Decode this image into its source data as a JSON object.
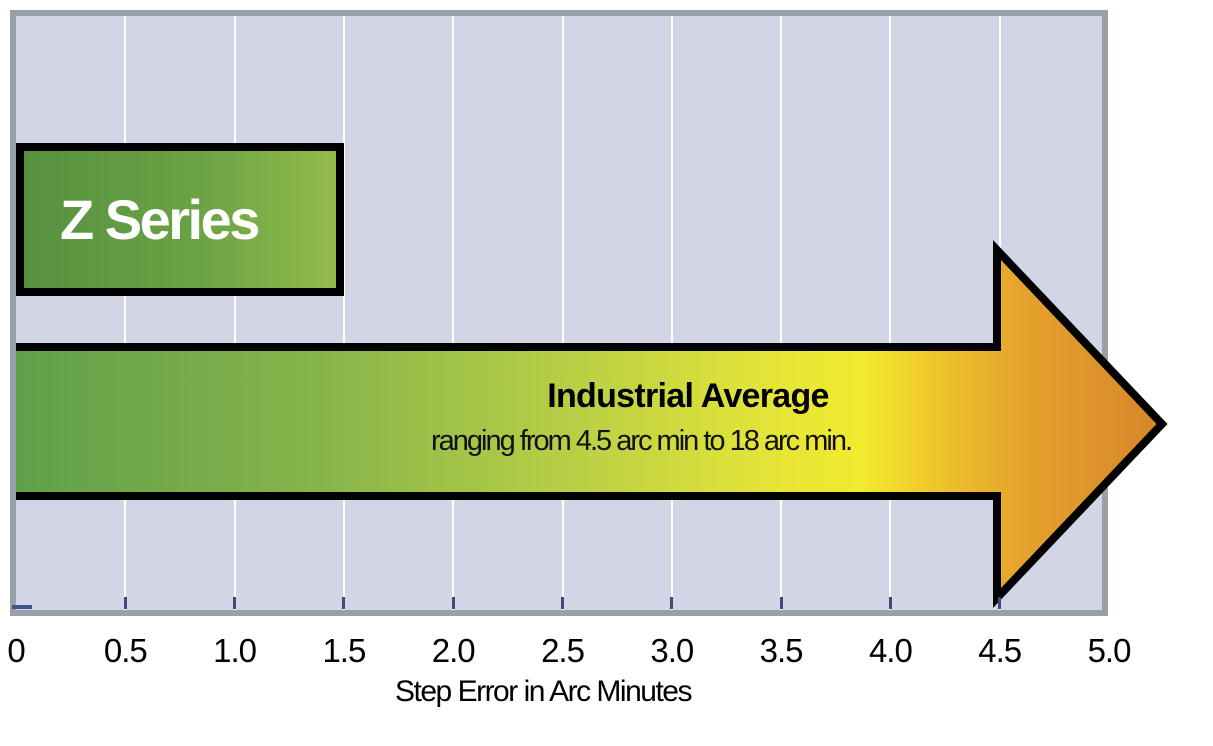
{
  "chart_data": {
    "type": "bar",
    "orientation": "horizontal",
    "title": "",
    "xlabel": "Step Error in Arc Minutes",
    "x_ticks": [
      "0",
      "0.5",
      "1.0",
      "1.5",
      "2.0",
      "2.5",
      "3.0",
      "3.5",
      "4.0",
      "4.5",
      "5.0"
    ],
    "xlim": [
      0,
      5.0
    ],
    "grid": "vertical",
    "series": [
      {
        "name": "Z Series",
        "label": "Z Series",
        "start": 0,
        "end": 1.5
      },
      {
        "name": "Industrial Average",
        "title": "Industrial Average",
        "subtitle": "ranging from 4.5 arc min to 18 arc min.",
        "start": 0,
        "arrowhead_begins_at": 4.5,
        "arrow_extends_beyond_axis": true
      }
    ]
  },
  "colors": {
    "plot_background": "#d1d5e5",
    "plot_border": "#98a0a8",
    "gridline": "#ffffff",
    "tick": "#3d4e73",
    "bar_outline": "#000000",
    "z_series_gradient": [
      "#579140",
      "#92bb4b"
    ],
    "z_series_label_text": "#ffffff",
    "industrial_gradient": [
      "#60a04a",
      "#86b44a",
      "#b8cf45",
      "#e6e537",
      "#f2ea2e",
      "#eec42b",
      "#e5a22c",
      "#d5832a"
    ],
    "industrial_text": "#000000",
    "axis_text": "#000000"
  }
}
